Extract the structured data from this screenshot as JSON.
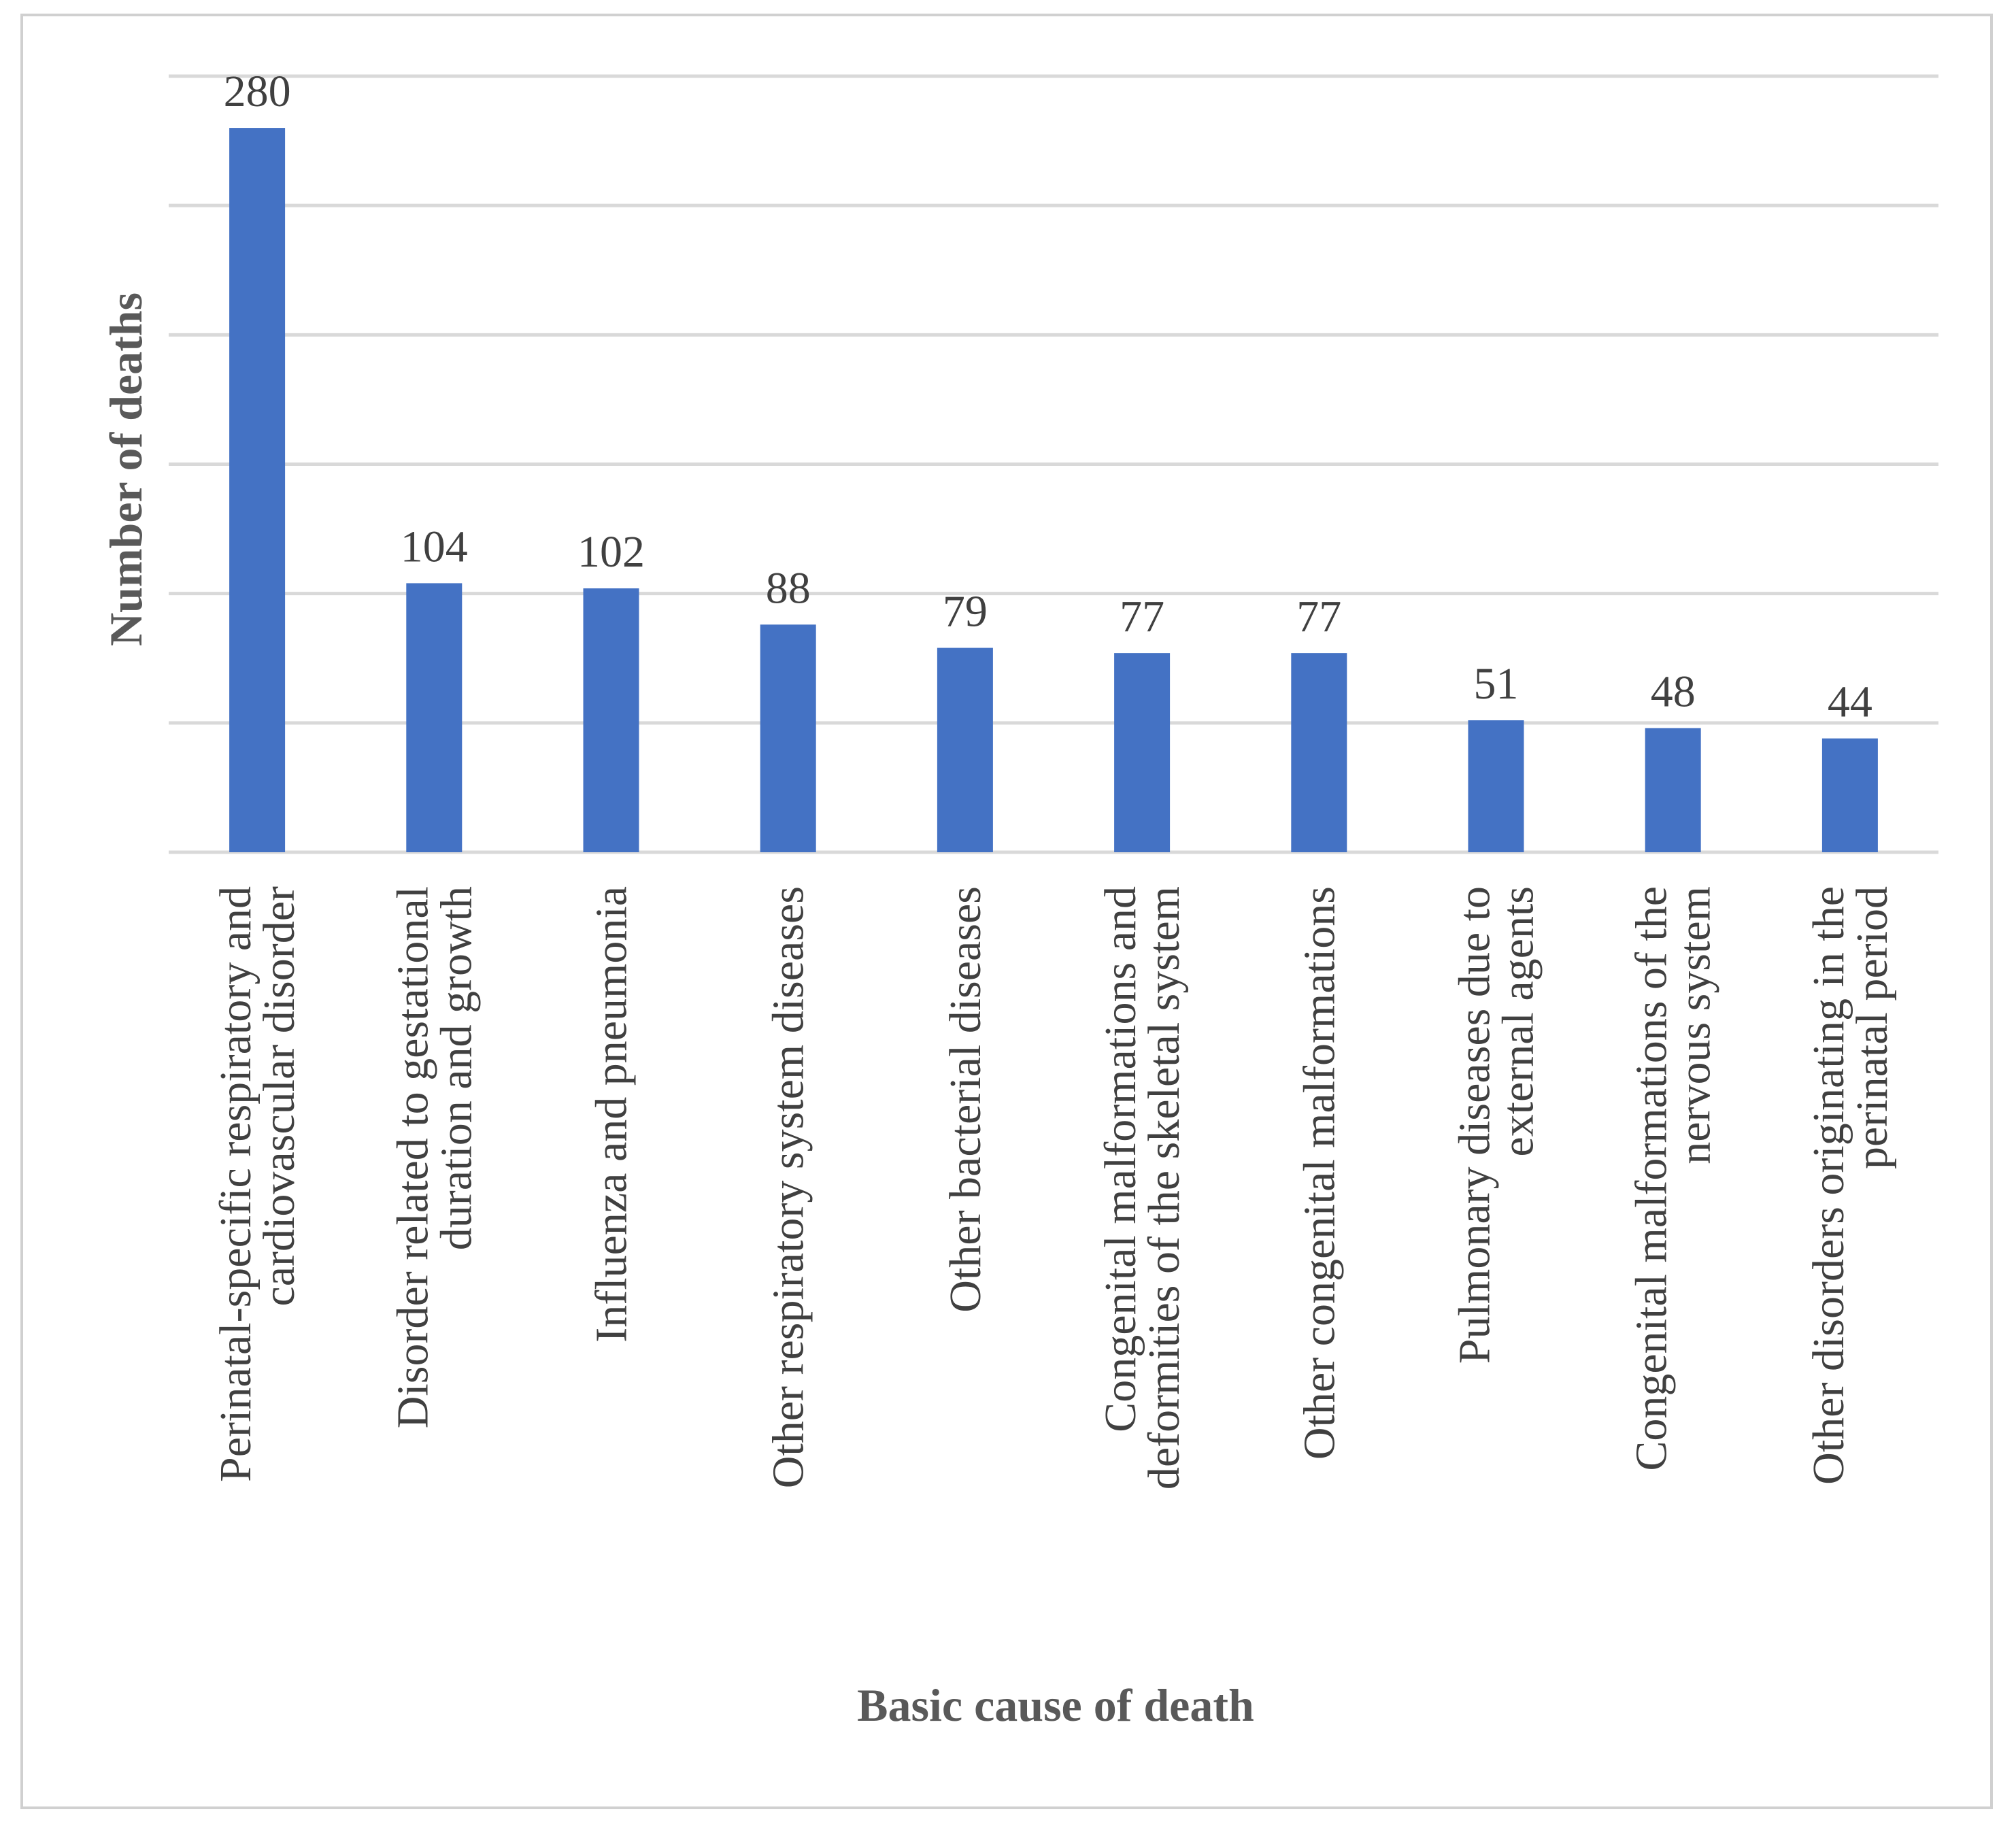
{
  "chart_data": {
    "type": "bar",
    "title": "",
    "xlabel": "Basic cause of death",
    "ylabel": "Number of deaths",
    "ylim": [
      0,
      300
    ],
    "ytick_step": 50,
    "grid": true,
    "bar_color": "#4472c4",
    "categories": [
      [
        "Perinatal-specific respiratory and",
        "cardiovascular disorder"
      ],
      [
        "Disorder related to gestational",
        "duration and growth"
      ],
      [
        "Influenza and pneumonia"
      ],
      [
        "Other respiratory system diseases"
      ],
      [
        "Other bacterial diseases"
      ],
      [
        "Congenital malformations and",
        "deformities of the skeletal system"
      ],
      [
        "Other congenital malformations"
      ],
      [
        "Pulmonary diseases due to",
        "external agents"
      ],
      [
        "Congenital malformations of the",
        "nervous system"
      ],
      [
        "Other disorders originating in the",
        "perinatal period"
      ]
    ],
    "values": [
      280,
      104,
      102,
      88,
      79,
      77,
      77,
      51,
      48,
      44
    ]
  }
}
